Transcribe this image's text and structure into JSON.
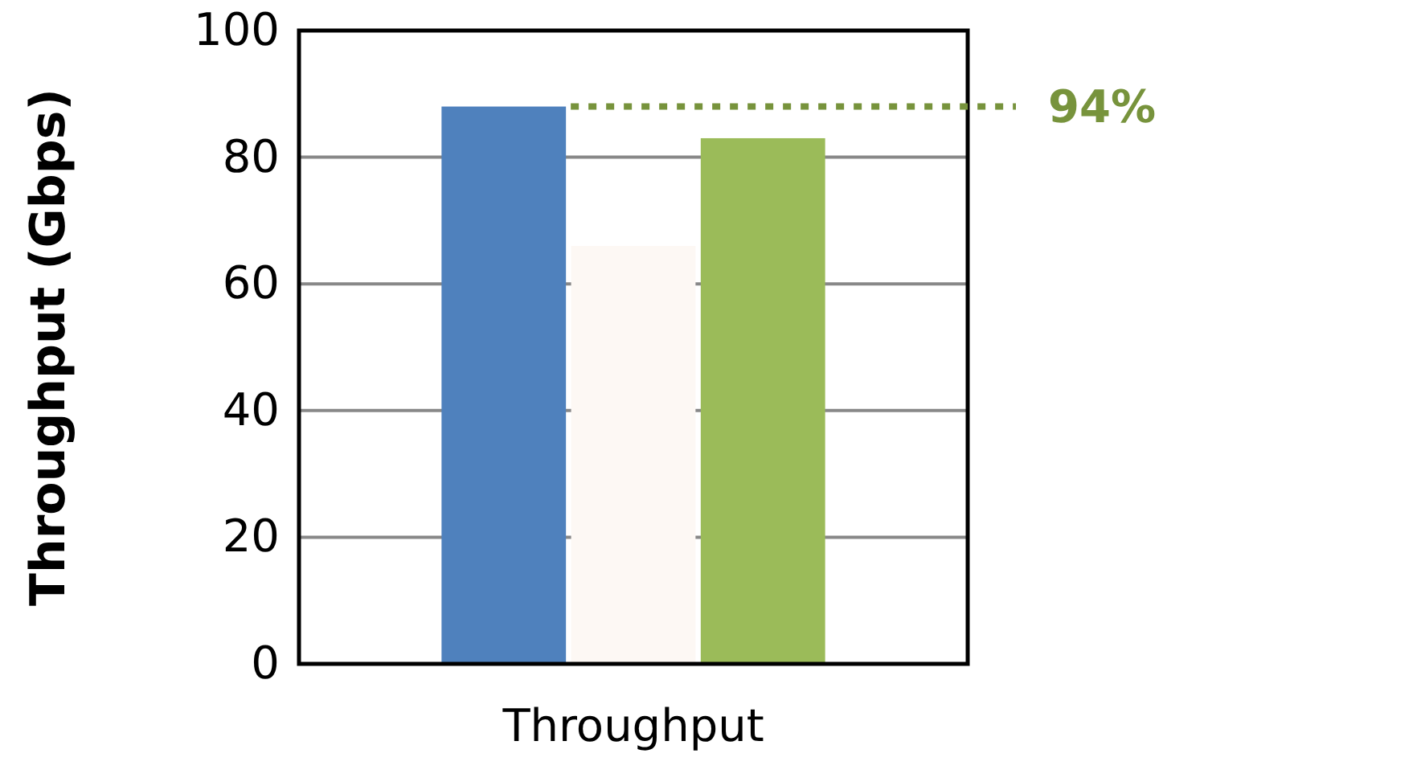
{
  "chart_data": {
    "type": "bar",
    "categories": [
      null,
      "Throughput",
      null
    ],
    "ylabel": "Throughput (Gbps)",
    "values": [
      88,
      66,
      83
    ],
    "colors": [
      "#4f81bd",
      "#fdf8f4",
      "#9bbb59"
    ],
    "ylim": [
      0,
      100
    ],
    "yticks": [
      0,
      20,
      40,
      60,
      80,
      100
    ],
    "grid": "y",
    "ref_lines": [
      {
        "axis": "y",
        "value": 88,
        "color": "#77933c",
        "line_style": "dotted"
      }
    ],
    "annotations": [
      "94%"
    ]
  }
}
